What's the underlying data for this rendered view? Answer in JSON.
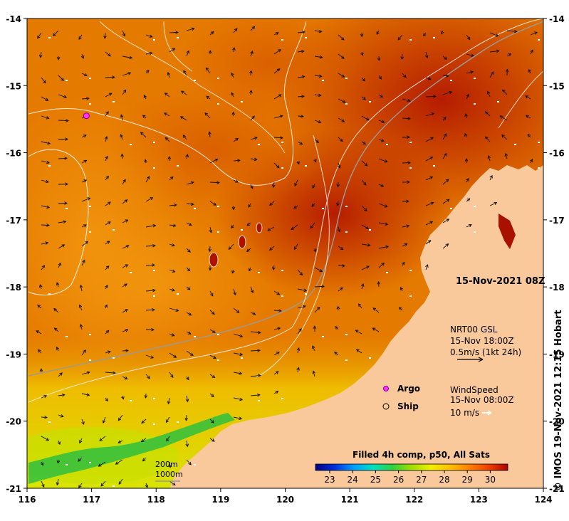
{
  "map": {
    "lon_ticks": [
      "116",
      "117",
      "118",
      "119",
      "120",
      "121",
      "122",
      "123",
      "124"
    ],
    "lat_ticks": [
      "-14",
      "-15",
      "-16",
      "-17",
      "-18",
      "-19",
      "-20",
      "-21"
    ],
    "lon_range": [
      116,
      124
    ],
    "lat_range": [
      -21,
      -14
    ],
    "timestamp": "15-Nov-2021 08Z",
    "credit": "© IMOS 19-Nov-2021 12:15 Hobart",
    "colors": {
      "land": "#f9c99c",
      "sea_warm": "#a81000",
      "sea_mid": "#e57a00",
      "sea_cool": "#d8e000",
      "shelf_green": "#2fbf3f"
    }
  },
  "legend": {
    "current": {
      "title": "NRT00 GSL",
      "time": "15-Nov 18:00Z",
      "scale": "0.5m/s (1kt 24h)"
    },
    "markers": {
      "argo": "Argo",
      "ship": "Ship"
    },
    "wind": {
      "title": "WindSpeed",
      "time": "15-Nov 08:00Z",
      "scale": "10 m/s"
    },
    "bathymetry": {
      "contour_200": "200m",
      "contour_1000": "1000m"
    }
  },
  "colorbar": {
    "title": "Filled 4h comp, p50, All Sats",
    "ticks": [
      "23",
      "24",
      "25",
      "26",
      "27",
      "28",
      "29",
      "30"
    ],
    "stops": [
      "#000080",
      "#0030e0",
      "#00a0ff",
      "#00e0c0",
      "#30d040",
      "#a0e000",
      "#f0f000",
      "#ffc000",
      "#ff8000",
      "#f04000",
      "#b00000"
    ]
  },
  "argo_float": {
    "lon": 116.92,
    "lat": -15.45
  }
}
